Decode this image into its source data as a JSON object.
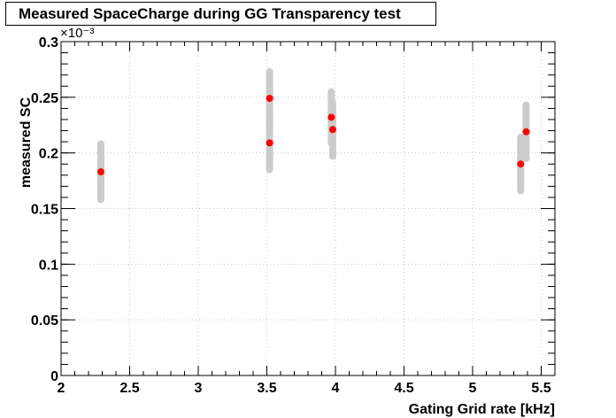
{
  "chart_data": {
    "type": "scatter",
    "title": "Measured SpaceCharge during GG Transparency test",
    "xlabel": "Gating Grid rate [kHz]",
    "ylabel": "measured SC",
    "y_multiplier": "×10⁻³",
    "xlim": [
      2.0,
      5.6
    ],
    "ylim": [
      0.0,
      0.3
    ],
    "x_ticks": [
      2,
      2.5,
      3,
      3.5,
      4,
      4.5,
      5,
      5.5
    ],
    "x_tick_labels": [
      "2",
      "2.5",
      "3",
      "3.5",
      "4",
      "4.5",
      "5",
      "5.5"
    ],
    "y_ticks": [
      0,
      0.05,
      0.1,
      0.15,
      0.2,
      0.25,
      0.3
    ],
    "y_tick_labels": [
      "0",
      "0.05",
      "0.1",
      "0.15",
      "0.2",
      "0.25",
      "0.3"
    ],
    "grid": true,
    "marker_color": "#ff0000",
    "errorbar_color": "#cccccc",
    "points": [
      {
        "x": 2.29,
        "y": 0.183,
        "ylow": 0.158,
        "yhigh": 0.208
      },
      {
        "x": 3.52,
        "y": 0.249,
        "ylow": 0.225,
        "yhigh": 0.273
      },
      {
        "x": 3.52,
        "y": 0.209,
        "ylow": 0.185,
        "yhigh": 0.233
      },
      {
        "x": 3.97,
        "y": 0.232,
        "ylow": 0.209,
        "yhigh": 0.255
      },
      {
        "x": 3.98,
        "y": 0.221,
        "ylow": 0.197,
        "yhigh": 0.245
      },
      {
        "x": 5.35,
        "y": 0.19,
        "ylow": 0.166,
        "yhigh": 0.214
      },
      {
        "x": 5.39,
        "y": 0.219,
        "ylow": 0.195,
        "yhigh": 0.243
      }
    ]
  }
}
